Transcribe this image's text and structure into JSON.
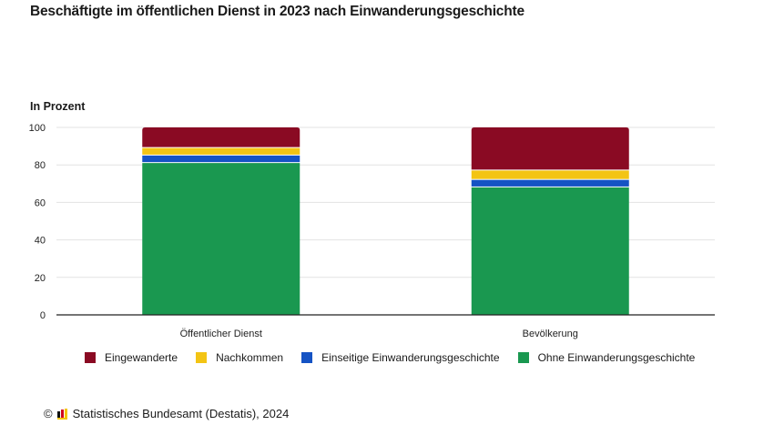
{
  "title": "Beschäftigte im öffentlichen Dienst in 2023 nach Einwanderungsgeschichte",
  "unit_label": "In Prozent",
  "footer": {
    "copyright_symbol": "©",
    "logo_icon": "destatis-logo-icon",
    "source": "Statistisches Bundesamt (Destatis), 2024"
  },
  "colors": {
    "Eingewanderte": "#8a0a23",
    "Nachkommen": "#f3c414",
    "Einseitige Einwanderungsgeschichte": "#1553c4",
    "Ohne Einwanderungsgeschichte": "#1a9850",
    "grid": "#e3e3e3",
    "axis": "#222222"
  },
  "chart_data": {
    "type": "bar",
    "stacked": true,
    "title": "Beschäftigte im öffentlichen Dienst in 2023 nach Einwanderungsgeschichte",
    "xlabel": "",
    "ylabel": "In Prozent",
    "ylim": [
      0,
      100
    ],
    "yticks": [
      "0",
      "20",
      "40",
      "60",
      "80",
      "100"
    ],
    "grid": true,
    "legend_position": "bottom",
    "categories": [
      "Öffentlicher Dienst",
      "Bevölkerung"
    ],
    "series": [
      {
        "name": "Ohne Einwanderungsgeschichte",
        "values": [
          81,
          68
        ]
      },
      {
        "name": "Einseitige Einwanderungsgeschichte",
        "values": [
          4,
          4
        ]
      },
      {
        "name": "Nachkommen",
        "values": [
          4,
          5
        ]
      },
      {
        "name": "Eingewanderte",
        "values": [
          11,
          23
        ]
      }
    ],
    "legend": [
      "Eingewanderte",
      "Nachkommen",
      "Einseitige Einwanderungsgeschichte",
      "Ohne Einwanderungsgeschichte"
    ]
  }
}
